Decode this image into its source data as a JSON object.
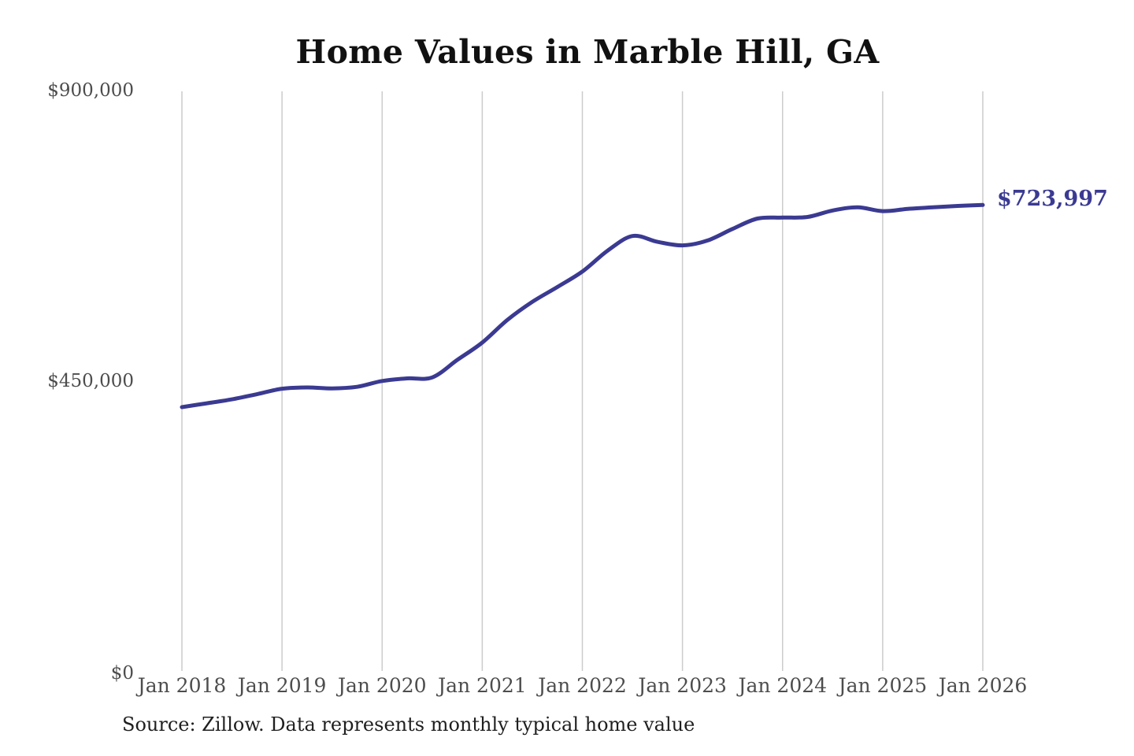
{
  "page": {
    "background": "#ffffff"
  },
  "source_note": "Source: Zillow. Data represents monthly typical home value",
  "colors": {
    "line": "#3b3a92",
    "grid": "#cccccc",
    "tick_text": "#4d4d4d",
    "title_text": "#111111",
    "source_text": "#1f1f1f",
    "end_label_text": "#3b3a92",
    "background": "#ffffff"
  },
  "chart_data": {
    "type": "line",
    "title": "Home Values in Marble Hill, GA",
    "xlabel": "",
    "ylabel": "",
    "x_tick_labels": [
      "Jan 2018",
      "Jan 2019",
      "Jan 2020",
      "Jan 2021",
      "Jan 2022",
      "Jan 2023",
      "Jan 2024",
      "Jan 2025",
      "Jan 2026"
    ],
    "y_tick_labels": [
      "$0",
      "$450,000",
      "$900,000"
    ],
    "ylim": [
      0,
      900000
    ],
    "grid": "vertical-only",
    "legend": "none",
    "end_value": 723997,
    "end_value_label": "$723,997",
    "series": [
      {
        "name": "Typical home value",
        "cadence": "quarterly",
        "points": [
          {
            "date": "2018-01",
            "value": 411000
          },
          {
            "date": "2018-04",
            "value": 417000
          },
          {
            "date": "2018-07",
            "value": 423000
          },
          {
            "date": "2018-10",
            "value": 431000
          },
          {
            "date": "2019-01",
            "value": 439500
          },
          {
            "date": "2019-04",
            "value": 441500
          },
          {
            "date": "2019-07",
            "value": 440000
          },
          {
            "date": "2019-10",
            "value": 442500
          },
          {
            "date": "2020-01",
            "value": 451500
          },
          {
            "date": "2020-04",
            "value": 455500
          },
          {
            "date": "2020-07",
            "value": 457000
          },
          {
            "date": "2020-10",
            "value": 484000
          },
          {
            "date": "2021-01",
            "value": 511000
          },
          {
            "date": "2021-04",
            "value": 546000
          },
          {
            "date": "2021-07",
            "value": 574000
          },
          {
            "date": "2021-10",
            "value": 597000
          },
          {
            "date": "2022-01",
            "value": 621000
          },
          {
            "date": "2022-04",
            "value": 653000
          },
          {
            "date": "2022-07",
            "value": 676000
          },
          {
            "date": "2022-10",
            "value": 667000
          },
          {
            "date": "2023-01",
            "value": 661500
          },
          {
            "date": "2023-04",
            "value": 669000
          },
          {
            "date": "2023-07",
            "value": 687000
          },
          {
            "date": "2023-10",
            "value": 703000
          },
          {
            "date": "2024-01",
            "value": 704500
          },
          {
            "date": "2024-04",
            "value": 705500
          },
          {
            "date": "2024-07",
            "value": 715500
          },
          {
            "date": "2024-10",
            "value": 720500
          },
          {
            "date": "2025-01",
            "value": 714500
          },
          {
            "date": "2025-04",
            "value": 718000
          },
          {
            "date": "2025-07",
            "value": 720500
          },
          {
            "date": "2025-10",
            "value": 722500
          },
          {
            "date": "2026-01",
            "value": 723997
          }
        ]
      }
    ]
  }
}
